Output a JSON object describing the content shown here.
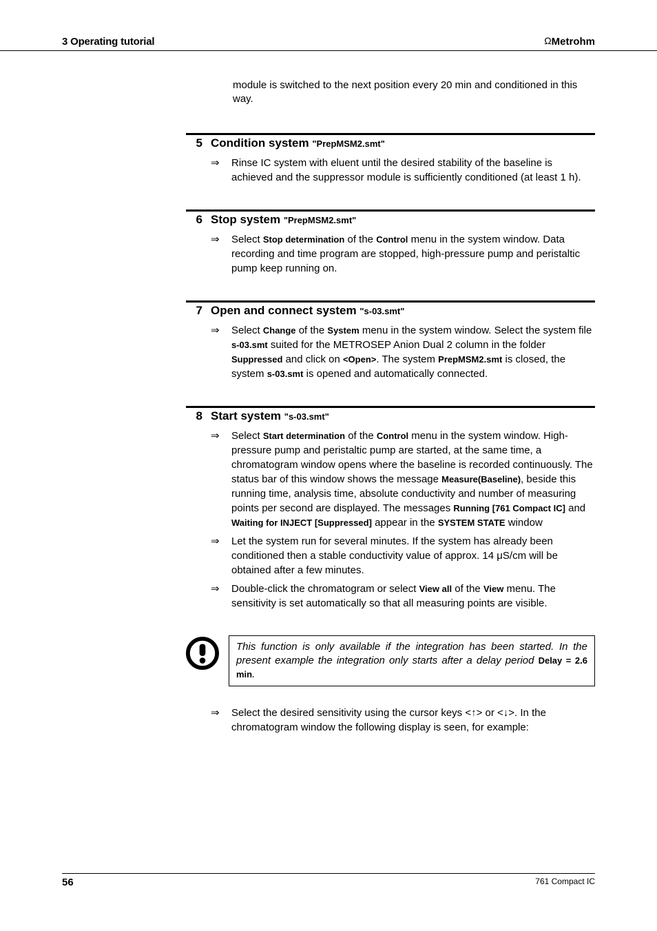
{
  "header": {
    "section": "3 Operating tutorial",
    "brand": "Metrohm",
    "brand_symbol": "Ω"
  },
  "intro": "module is switched to the next position every 20 min and conditioned in this way.",
  "steps": [
    {
      "num": "5",
      "title": "Condition system",
      "sub": "\"PrepMSM2.smt\"",
      "bullets": [
        {
          "text": "Rinse IC system with eluent until the desired stability of the baseline is achieved and the suppressor module is sufficiently conditioned (at least 1 h)."
        }
      ]
    },
    {
      "num": "6",
      "title": "Stop system",
      "sub": "\"PrepMSM2.smt\"",
      "bullets": [
        {
          "html": "Select <span class=\"bs\">Stop determination</span> of the <span class=\"bs\">Control</span> menu in the system window. Data recording and time program are stopped, high-pressure pump and peristaltic pump keep running on."
        }
      ]
    },
    {
      "num": "7",
      "title": "Open and connect system",
      "sub": "\"s-03.smt\"",
      "bullets": [
        {
          "html": "Select <span class=\"bs\">Change</span> of the <span class=\"bs\">System</span> menu in the system window. Select the system file <span class=\"bs\">s-03.smt</span> suited for the METROSEP Anion Dual 2 column in the folder <span class=\"bs\">Suppressed</span> and click on <span class=\"bs\">&lt;Open&gt;</span>. The system <span class=\"bs\">PrepMSM2.smt</span> is closed, the system <span class=\"bs\">s-03.smt</span> is opened and automatically connected."
        }
      ]
    },
    {
      "num": "8",
      "title": "Start system",
      "sub": "\"s-03.smt\"",
      "bullets": [
        {
          "html": "Select <span class=\"bs\">Start determination</span> of the <span class=\"bs\">Control</span> menu in the system window. High-pressure pump and peristaltic pump are started, at the same time, a chromatogram window opens where the baseline is recorded continuously. The status bar of this window shows the message <span class=\"bs\">Measure(Baseline)</span>, beside this running time, analysis time, absolute conductivity and number of measuring points per second are displayed. The messages <span class=\"bs\">Running [761 Compact IC]</span> and <span class=\"bs\">Waiting for INJECT [Suppressed]</span> appear in the <span class=\"bs\">SYSTEM STATE</span> window"
        },
        {
          "html": "Let the system run for several minutes. If the system has already been conditioned then a stable conductivity value of approx. 14 μS/cm will be obtained after a few minutes."
        },
        {
          "html": "Double-click the chromatogram or select <span class=\"bs\">View all</span> of the <span class=\"bs\">View</span> menu. The sensitivity is set automatically so that all measuring points are visible."
        }
      ]
    }
  ],
  "note": {
    "html": "This function is only available if the integration has been started. In the present example the integration only starts after a delay period <span class=\"bs\">Delay = 2.6 min</span>."
  },
  "after_note": {
    "html": "Select the desired sensitivity using the cursor keys &lt;<span class=\"cursor-key\">↑</span>&gt; or &lt;<span class=\"cursor-key\">↓</span>&gt;. In the chromatogram window the following display is seen, for example:"
  },
  "footer": {
    "page": "56",
    "doc": "761 Compact IC"
  },
  "colors": {
    "text": "#000000",
    "background": "#ffffff",
    "rule": "#000000"
  }
}
